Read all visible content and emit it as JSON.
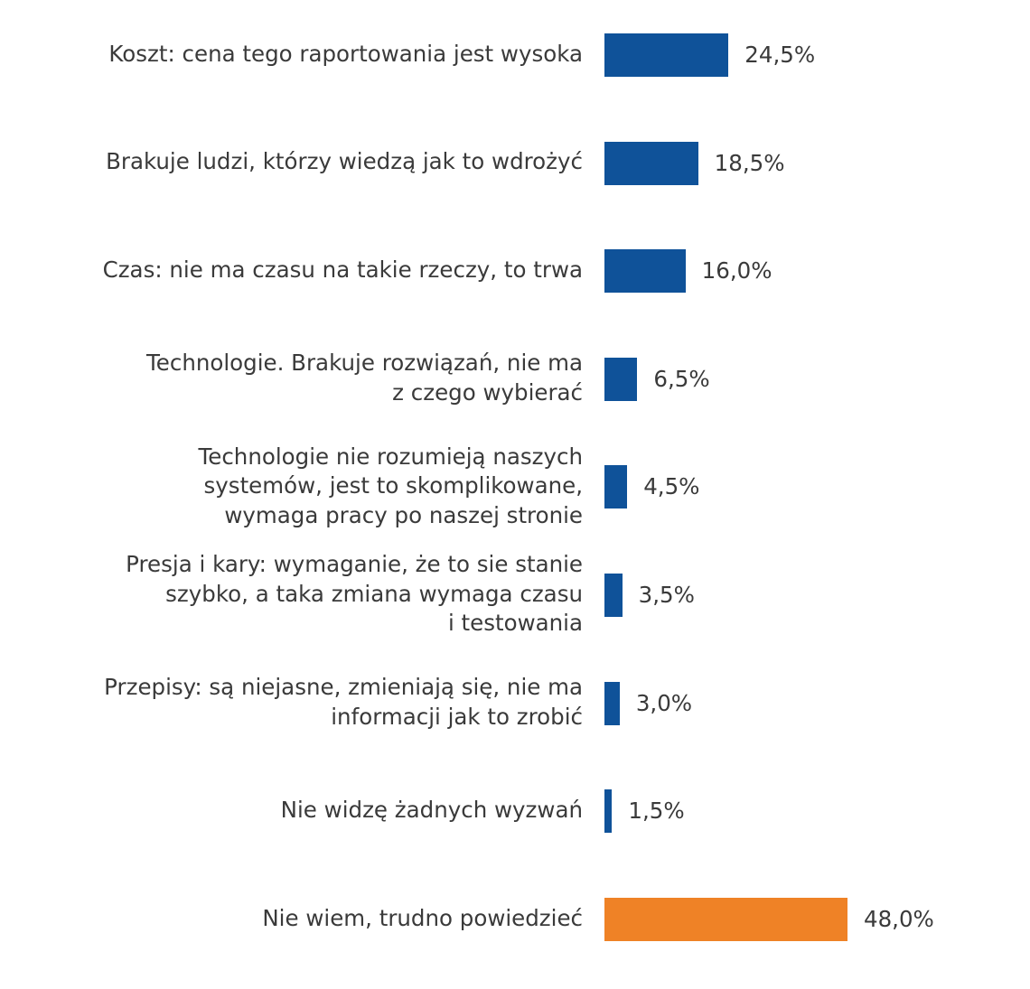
{
  "chart_data": {
    "type": "bar",
    "orientation": "horizontal",
    "title": "",
    "xlabel": "",
    "ylabel": "",
    "xlim": [
      0,
      48.0
    ],
    "grid": false,
    "legend": "none",
    "categories": [
      [
        "Koszt: cena tego raportowania jest wysoka"
      ],
      [
        "Brakuje ludzi, którzy wiedzą jak to wdrożyć"
      ],
      [
        "Czas: nie ma czasu na takie rzeczy, to trwa"
      ],
      [
        "Technologie. Brakuje rozwiązań, nie ma",
        "z czego wybierać"
      ],
      [
        "Technologie nie rozumieją naszych",
        "systemów, jest to skomplikowane,",
        "wymaga pracy po naszej stronie"
      ],
      [
        "Presja i kary: wymaganie, że to sie stanie",
        "szybko, a taka zmiana wymaga czasu",
        "i testowania"
      ],
      [
        "Przepisy: są niejasne, zmieniają się, nie ma",
        "informacji jak to zrobić"
      ],
      [
        "Nie widzę żadnych wyzwań"
      ],
      [
        "Nie wiem, trudno powiedzieć"
      ]
    ],
    "values": [
      24.5,
      18.5,
      16.0,
      6.5,
      4.5,
      3.5,
      3.0,
      1.5,
      48.0
    ],
    "value_labels": [
      "24,5%",
      "18,5%",
      "16,0%",
      "6,5%",
      "4,5%",
      "3,5%",
      "3,0%",
      "1,5%",
      "48,0%"
    ],
    "bar_colors": [
      "#0f5299",
      "#0f5299",
      "#0f5299",
      "#0f5299",
      "#0f5299",
      "#0f5299",
      "#0f5299",
      "#0f5299",
      "#ef8226"
    ]
  }
}
